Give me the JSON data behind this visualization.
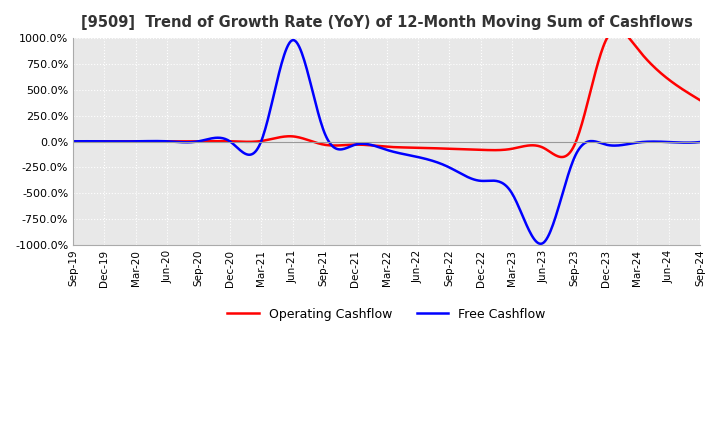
{
  "title": "[9509]  Trend of Growth Rate (YoY) of 12-Month Moving Sum of Cashflows",
  "title_fontsize": 10.5,
  "ylim": [
    -1000,
    1000
  ],
  "yticks": [
    -1000,
    -750,
    -500,
    -250,
    0,
    250,
    500,
    750,
    1000
  ],
  "background_color": "#ffffff",
  "plot_bg_color": "#e8e8e8",
  "grid_color": "#ffffff",
  "legend": [
    "Operating Cashflow",
    "Free Cashflow"
  ],
  "line_colors": [
    "#ff0000",
    "#0000ff"
  ],
  "x_labels": [
    "Sep-19",
    "Dec-19",
    "Mar-20",
    "Jun-20",
    "Sep-20",
    "Dec-20",
    "Mar-21",
    "Jun-21",
    "Sep-21",
    "Dec-21",
    "Mar-22",
    "Jun-22",
    "Sep-22",
    "Dec-22",
    "Mar-23",
    "Jun-23",
    "Sep-23",
    "Dec-23",
    "Mar-24",
    "Jun-24",
    "Sep-24"
  ],
  "operating_cashflow": [
    2,
    2,
    2,
    2,
    2,
    3,
    5,
    50,
    -30,
    -30,
    -50,
    -60,
    -70,
    -80,
    -70,
    -60,
    -30,
    980,
    900,
    600,
    400
  ],
  "free_cashflow": [
    2,
    2,
    2,
    2,
    2,
    2,
    2,
    980,
    100,
    -30,
    -80,
    -150,
    -250,
    -380,
    -500,
    -980,
    -150,
    -30,
    -10,
    -5,
    -5
  ]
}
